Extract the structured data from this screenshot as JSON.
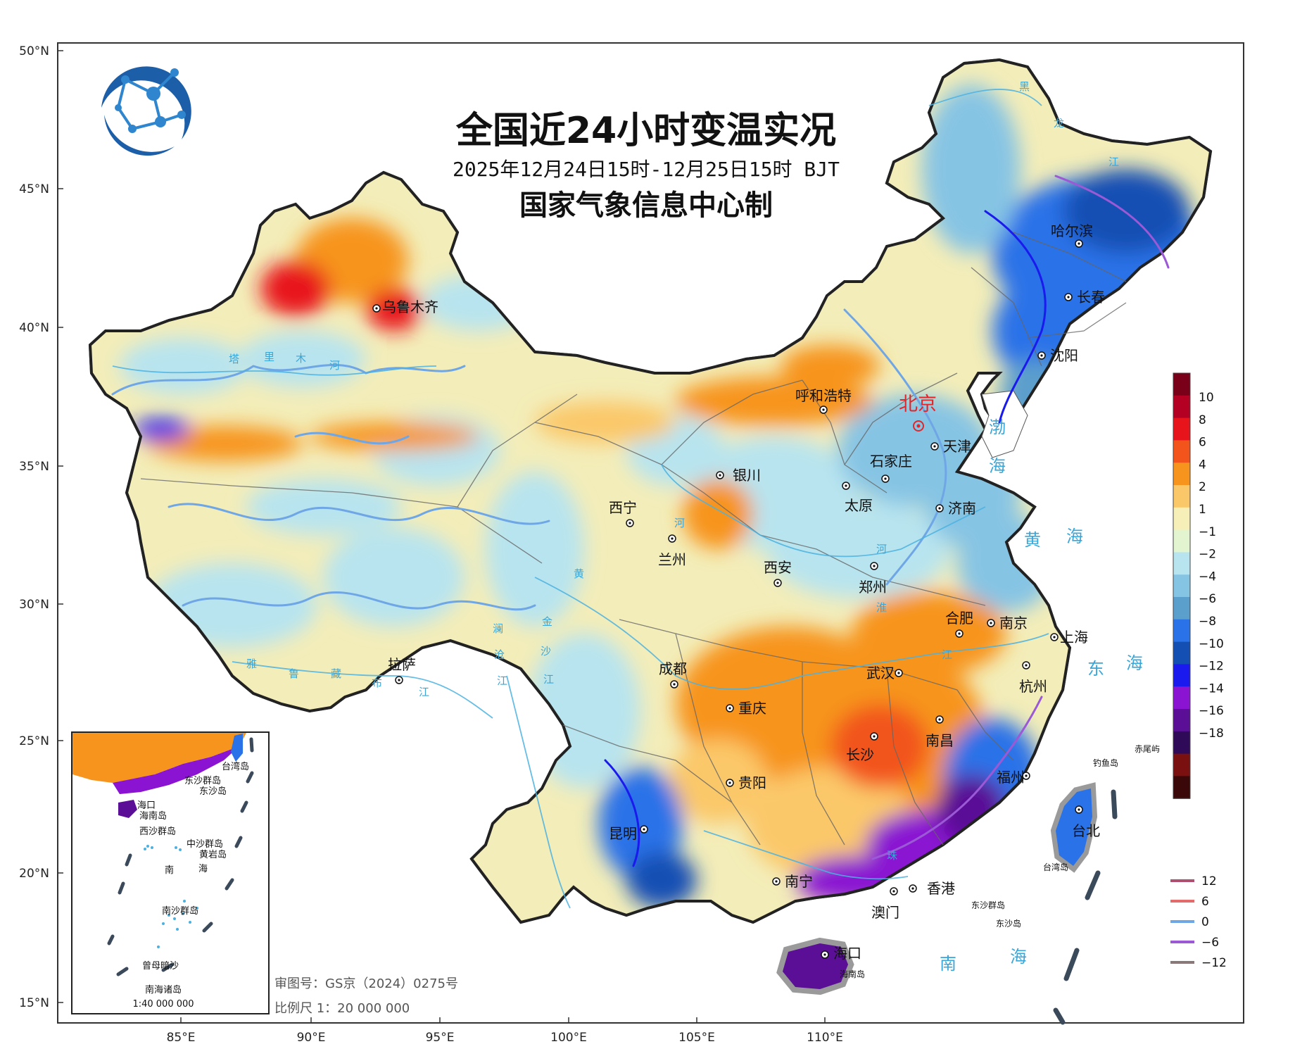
{
  "title": "全国近24小时变温实况",
  "subtitle": "2025年12月24日15时-12月25日15时 BJT",
  "producer": "国家气象信息中心制",
  "latitudes": [
    "50°N",
    "45°N",
    "40°N",
    "35°N",
    "30°N",
    "25°N",
    "20°N",
    "15°N"
  ],
  "longitudes": [
    "85°E",
    "90°E",
    "95°E",
    "100°E",
    "105°E",
    "110°E"
  ],
  "cities": [
    {
      "name": "乌鲁木齐",
      "icon": "city-marker"
    },
    {
      "name": "呼和浩特",
      "icon": "city-marker"
    },
    {
      "name": "北京",
      "icon": "capital-star"
    },
    {
      "name": "天津",
      "icon": "city-marker"
    },
    {
      "name": "石家庄",
      "icon": "city-marker"
    },
    {
      "name": "银川",
      "icon": "city-marker"
    },
    {
      "name": "太原",
      "icon": "city-marker"
    },
    {
      "name": "济南",
      "icon": "city-marker"
    },
    {
      "name": "西宁",
      "icon": "city-marker"
    },
    {
      "name": "兰州",
      "icon": "city-marker"
    },
    {
      "name": "西安",
      "icon": "city-marker"
    },
    {
      "name": "郑州",
      "icon": "city-marker"
    },
    {
      "name": "合肥",
      "icon": "city-marker"
    },
    {
      "name": "南京",
      "icon": "city-marker"
    },
    {
      "name": "上海",
      "icon": "city-marker"
    },
    {
      "name": "拉萨",
      "icon": "city-marker"
    },
    {
      "name": "成都",
      "icon": "city-marker"
    },
    {
      "name": "武汉",
      "icon": "city-marker"
    },
    {
      "name": "杭州",
      "icon": "city-marker"
    },
    {
      "name": "重庆",
      "icon": "city-marker"
    },
    {
      "name": "南昌",
      "icon": "city-marker"
    },
    {
      "name": "长沙",
      "icon": "city-marker"
    },
    {
      "name": "贵阳",
      "icon": "city-marker"
    },
    {
      "name": "福州",
      "icon": "city-marker"
    },
    {
      "name": "台北",
      "icon": "city-marker"
    },
    {
      "name": "昆明",
      "icon": "city-marker"
    },
    {
      "name": "南宁",
      "icon": "city-marker"
    },
    {
      "name": "香港",
      "icon": "city-marker"
    },
    {
      "name": "澳门",
      "icon": "city-marker"
    },
    {
      "name": "海口",
      "icon": "city-marker"
    },
    {
      "name": "哈尔滨",
      "icon": "city-marker"
    },
    {
      "name": "长春",
      "icon": "city-marker"
    },
    {
      "name": "沈阳",
      "icon": "city-marker"
    }
  ],
  "seas": {
    "bohai_1": "渤",
    "bohai_2": "海",
    "yellow_1": "黄",
    "yellow_2": "海",
    "east_1": "东",
    "east_2": "海",
    "south_1": "南",
    "south_2": "海"
  },
  "rivers": {
    "tarim": [
      "塔",
      "里",
      "木",
      "河"
    ],
    "yellow": [
      "黄",
      "河"
    ],
    "yarlung": [
      "雅",
      "鲁",
      "藏",
      "布",
      "江"
    ],
    "jinsha": [
      "金",
      "沙",
      "江"
    ],
    "lancang": [
      "澜",
      "沧",
      "江"
    ],
    "huai": "淮",
    "changjiang": "江",
    "heilong": [
      "黑",
      "龙",
      "江"
    ],
    "zhu": "珠",
    "huanghe_lower": "河"
  },
  "islands": {
    "diaoyu": "钓鱼岛",
    "chiwei": "赤尾屿",
    "taiwan": "台湾岛",
    "hainan": "海南岛",
    "dongsha_qd": "东沙群岛",
    "dongsha": "东沙岛"
  },
  "inset": {
    "title": "南海诸岛",
    "scale": "1:40 000 000",
    "labels": [
      "台湾岛",
      "东沙群岛",
      "东沙岛",
      "海口",
      "海南岛",
      "西沙群岛",
      "中沙群岛",
      "黄岩岛",
      "南",
      "海",
      "南沙群岛",
      "曾母暗沙"
    ]
  },
  "review_number": "审图号：GS京（2024）0275号",
  "scale": "比例尺 1：20 000 000",
  "colorbar": {
    "labels": [
      "10",
      "8",
      "6",
      "4",
      "2",
      "1",
      "−1",
      "−2",
      "−4",
      "−6",
      "−8",
      "−10",
      "−12",
      "−14",
      "−16",
      "−18"
    ],
    "colors": [
      "#7a0019",
      "#b40022",
      "#e8141b",
      "#f2541c",
      "#f7941d",
      "#fbc869",
      "#f6efb8",
      "#e2f5d0",
      "#b8e4ef",
      "#86c4e4",
      "#5b9fcc",
      "#2a72e8",
      "#1450b4",
      "#1a1aee",
      "#8a14d2",
      "#5a0f96",
      "#2e0a58",
      "#7a1010",
      "#3a0808"
    ]
  },
  "isoline_legend": [
    {
      "value": "12",
      "color": "#b05070"
    },
    {
      "value": "6",
      "color": "#e46b6b"
    },
    {
      "value": "0",
      "color": "#6fa6e6"
    },
    {
      "value": "−6",
      "color": "#9b59d6"
    },
    {
      "value": "−12",
      "color": "#8a7878"
    }
  ],
  "colors": {
    "background": "#ffffff",
    "land_mild": "#f3edb9",
    "warm": "#f7941d",
    "cool": "#86c4e4",
    "cold": "#2a72e8",
    "very_cold": "#8a14d2",
    "sea_label": "#3aa6d8",
    "capital": "#e0262b"
  }
}
